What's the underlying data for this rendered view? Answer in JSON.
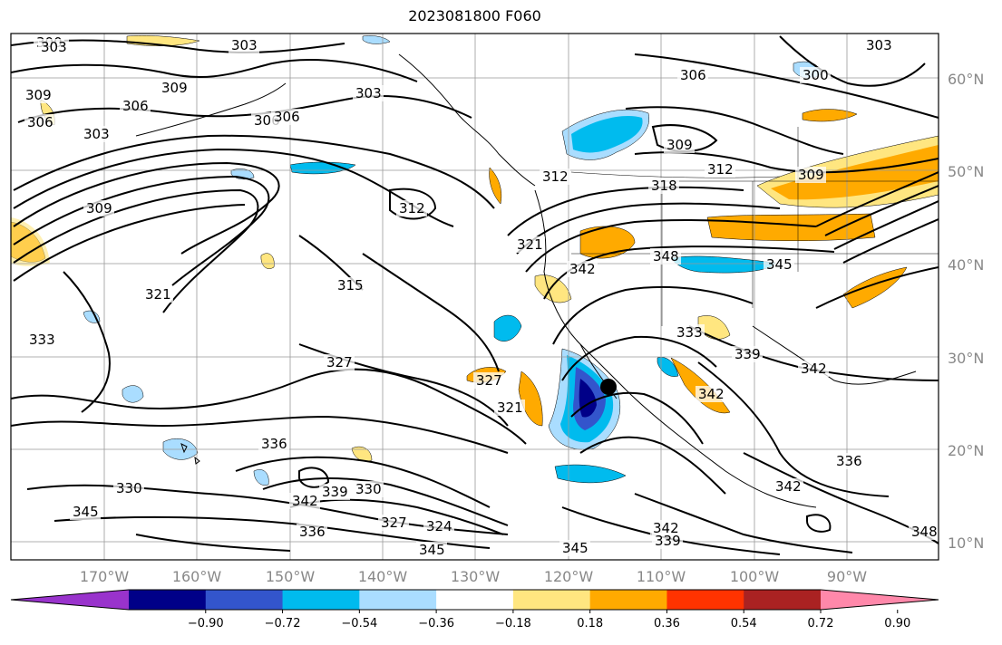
{
  "title": "2023081800 F060",
  "latitude_labels": [
    "60°N",
    "50°N",
    "40°N",
    "30°N",
    "20°N",
    "10°N"
  ],
  "longitude_labels": [
    "170°W",
    "160°W",
    "150°W",
    "140°W",
    "130°W",
    "120°W",
    "110°W",
    "100°W",
    "90°W"
  ],
  "colorbar": {
    "colors": [
      "#9933cc",
      "#000088",
      "#3355cc",
      "#00bbee",
      "#aaddff",
      "#ffffff",
      "#ffe680",
      "#ffaa00",
      "#ff3300",
      "#aa2222",
      "#ff88aa"
    ],
    "tick_labels": [
      "−0.90",
      "−0.72",
      "−0.54",
      "−0.36",
      "−0.18",
      "0.18",
      "0.36",
      "0.54",
      "0.72",
      "0.90"
    ]
  },
  "contour_labels": [
    "303",
    "306",
    "309",
    "312",
    "315",
    "318",
    "321",
    "327",
    "330",
    "333",
    "336",
    "339",
    "342",
    "345",
    "348"
  ],
  "contour_label_instances": [
    "300",
    "303",
    "303",
    "309",
    "306",
    "306",
    "309",
    "306",
    "303",
    "303",
    "306",
    "309",
    "312",
    "312",
    "318",
    "309",
    "309",
    "300",
    "306",
    "303",
    "312",
    "315",
    "321",
    "333",
    "327",
    "327",
    "321",
    "321",
    "336",
    "330",
    "342",
    "339",
    "330",
    "327",
    "324",
    "336",
    "345",
    "345",
    "345",
    "342",
    "339",
    "342",
    "348",
    "333",
    "339",
    "342",
    "345",
    "348",
    "342",
    "336",
    "342"
  ],
  "marker": "storm-center"
}
